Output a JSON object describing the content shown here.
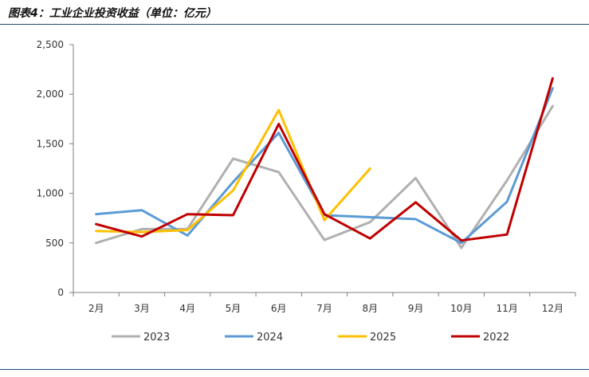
{
  "header": {
    "title": "图表4：工业企业投资收益（单位：亿元）"
  },
  "chart_data": {
    "type": "line",
    "title": "图表4：工业企业投资收益（单位：亿元）",
    "xlabel": "",
    "ylabel": "",
    "categories": [
      "2月",
      "3月",
      "4月",
      "5月",
      "6月",
      "7月",
      "8月",
      "9月",
      "10月",
      "11月",
      "12月"
    ],
    "ylim": [
      0,
      2500
    ],
    "yticks": [
      0,
      500,
      1000,
      1500,
      2000,
      2500
    ],
    "ytick_labels": [
      "0",
      "500",
      "1,000",
      "1,500",
      "2,000",
      "2,500"
    ],
    "grid": false,
    "legend_position": "bottom",
    "series": [
      {
        "name": "2023",
        "color": "#b0b0b0",
        "values": [
          500,
          640,
          640,
          1350,
          1215,
          530,
          710,
          1155,
          450,
          1130,
          1880
        ]
      },
      {
        "name": "2024",
        "color": "#5b9bd5",
        "values": [
          790,
          830,
          575,
          1115,
          1610,
          780,
          760,
          740,
          500,
          915,
          2060
        ]
      },
      {
        "name": "2025",
        "color": "#ffc000",
        "values": [
          620,
          610,
          630,
          1030,
          1840,
          730,
          1250,
          null,
          null,
          null,
          null
        ]
      },
      {
        "name": "2022",
        "color": "#c00000",
        "values": [
          690,
          565,
          790,
          780,
          1700,
          790,
          545,
          910,
          525,
          585,
          2160
        ]
      }
    ]
  }
}
